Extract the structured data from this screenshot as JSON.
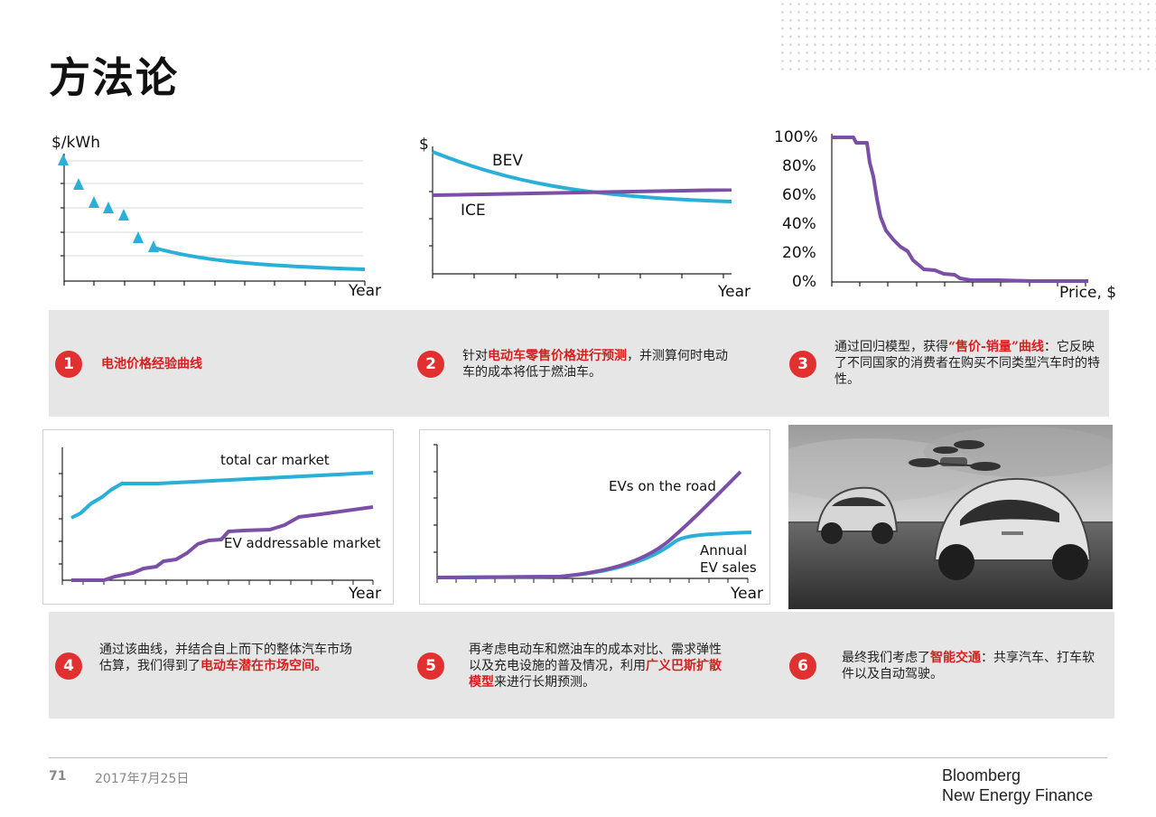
{
  "title": "方法论",
  "footer": {
    "page": "71",
    "date": "2017年7月25日",
    "brand_line1": "Bloomberg",
    "brand_line2": "New Energy Finance"
  },
  "charts": {
    "c1": {
      "ylabel": "$/kWh",
      "xlabel": "Year"
    },
    "c2": {
      "ylabel": "$",
      "xlabel": "Year",
      "series": [
        "BEV",
        "ICE"
      ]
    },
    "c3": {
      "ticks": [
        "100%",
        "80%",
        "60%",
        "40%",
        "20%",
        "0%"
      ],
      "xlabel": "Price, $"
    },
    "c4": {
      "series": [
        "total car market",
        "EV addressable market"
      ],
      "xlabel": "Year"
    },
    "c5": {
      "series": [
        "EVs on the road",
        "Annual",
        "EV sales"
      ],
      "xlabel": "Year"
    }
  },
  "chart_data": [
    {
      "type": "scatter",
      "ylabel": "$/kWh",
      "xlabel": "Year",
      "note": "triangle markers followed by decaying curve"
    },
    {
      "type": "line",
      "ylabel": "$",
      "xlabel": "Year",
      "series": [
        {
          "name": "BEV"
        },
        {
          "name": "ICE"
        }
      ]
    },
    {
      "type": "line",
      "xlabel": "Price, $",
      "ylim": [
        0,
        100
      ],
      "yticks": [
        "100%",
        "80%",
        "60%",
        "40%",
        "20%",
        "0%"
      ]
    },
    {
      "type": "line",
      "xlabel": "Year",
      "series": [
        {
          "name": "total car market"
        },
        {
          "name": "EV addressable market"
        }
      ]
    },
    {
      "type": "line",
      "xlabel": "Year",
      "series": [
        {
          "name": "EVs on the road"
        },
        {
          "name": "Annual EV sales"
        }
      ]
    }
  ],
  "steps": [
    {
      "num": "1",
      "parts": [
        {
          "t": "电池价格经验曲线",
          "red": true
        }
      ]
    },
    {
      "num": "2",
      "parts": [
        {
          "t": "针对",
          "red": false
        },
        {
          "t": "电动车零售价格进行预测",
          "red": true
        },
        {
          "t": "，并测算何时电动车的成本将低于燃油车。",
          "red": false
        }
      ]
    },
    {
      "num": "3",
      "parts": [
        {
          "t": "通过回归模型，获得",
          "red": false
        },
        {
          "t": "“售价-销量”曲线",
          "red": true
        },
        {
          "t": "：它反映了不同国家的消费者在购买不同类型汽车时的特性。",
          "red": false
        }
      ]
    },
    {
      "num": "4",
      "parts": [
        {
          "t": "通过该曲线，并结合自上而下的整体汽车市场估算，我们得到了",
          "red": false
        },
        {
          "t": "电动车潜在市场空间。",
          "red": true
        }
      ]
    },
    {
      "num": "5",
      "parts": [
        {
          "t": "再考虑电动车和燃油车的成本对比、需求弹性以及充电设施的普及情况，利用",
          "red": false
        },
        {
          "t": "广义巴斯扩散模型",
          "red": true
        },
        {
          "t": "来进行长期预测。",
          "red": false
        }
      ]
    },
    {
      "num": "6",
      "parts": [
        {
          "t": "最终我们考虑了",
          "red": false
        },
        {
          "t": "智能交通",
          "red": true
        },
        {
          "t": "：共享汽车、打车软件以及自动驾驶。",
          "red": false
        }
      ]
    }
  ],
  "colors": {
    "blue": "#2ab0d8",
    "purple": "#7b4fa6",
    "red": "#e03030",
    "panel": "#e6e6e6"
  }
}
